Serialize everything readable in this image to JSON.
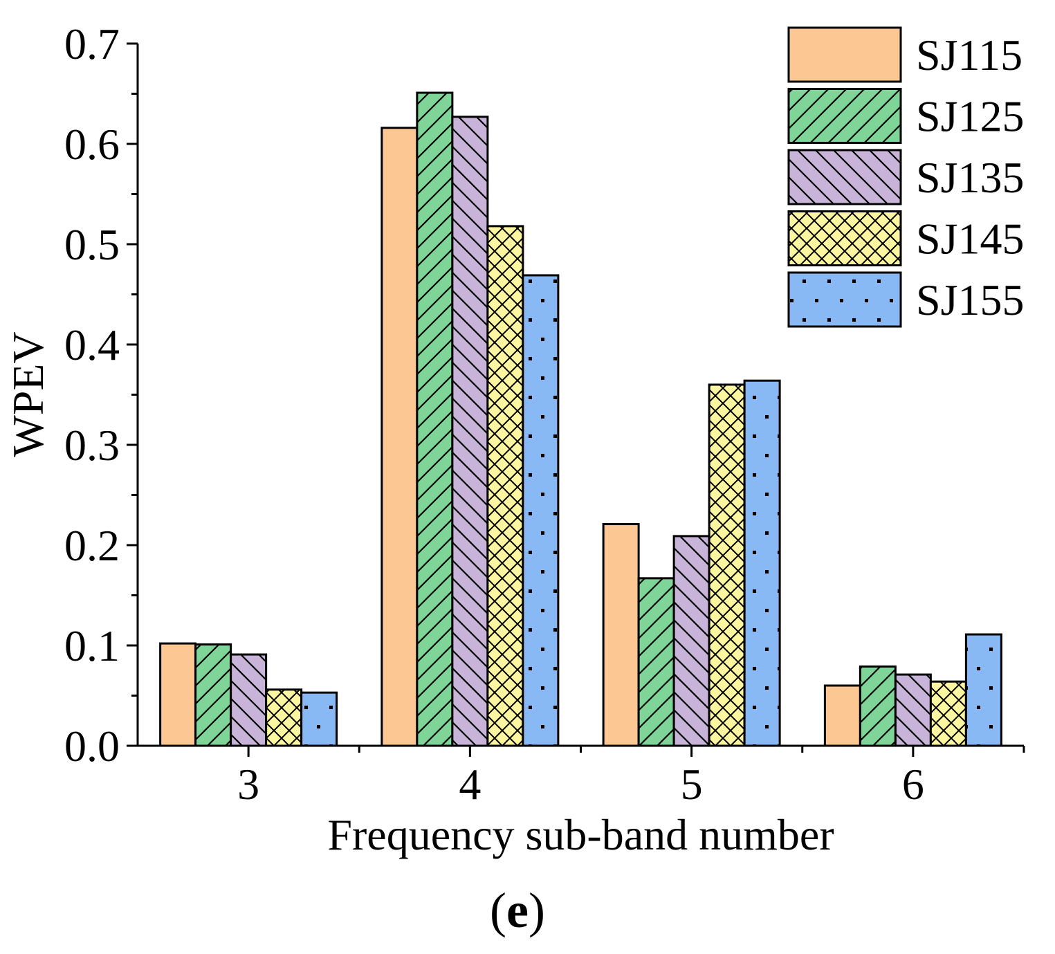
{
  "chart_data": {
    "type": "bar",
    "title": "",
    "xlabel": "Frequency sub-band number",
    "ylabel": "WPEV",
    "categories": [
      "3",
      "4",
      "5",
      "6"
    ],
    "ylim": [
      0,
      0.7
    ],
    "yticks": [
      "0.0",
      "0.1",
      "0.2",
      "0.3",
      "0.4",
      "0.5",
      "0.6",
      "0.7"
    ],
    "legend_position": "top-right",
    "series": [
      {
        "name": "SJ115",
        "values": [
          0.102,
          0.616,
          0.221,
          0.06
        ],
        "color": "#FDC793",
        "pattern": "solid"
      },
      {
        "name": "SJ125",
        "values": [
          0.101,
          0.651,
          0.167,
          0.079
        ],
        "color": "#7FD598",
        "pattern": "diag-right"
      },
      {
        "name": "SJ135",
        "values": [
          0.091,
          0.627,
          0.209,
          0.071
        ],
        "color": "#C8B4D8",
        "pattern": "diag-left"
      },
      {
        "name": "SJ145",
        "values": [
          0.056,
          0.518,
          0.36,
          0.064
        ],
        "color": "#FCF6A0",
        "pattern": "crosshatch"
      },
      {
        "name": "SJ155",
        "values": [
          0.053,
          0.469,
          0.364,
          0.111
        ],
        "color": "#88B9F4",
        "pattern": "dots"
      }
    ]
  },
  "caption": {
    "open": "(",
    "letter": "e",
    "close": ")"
  }
}
